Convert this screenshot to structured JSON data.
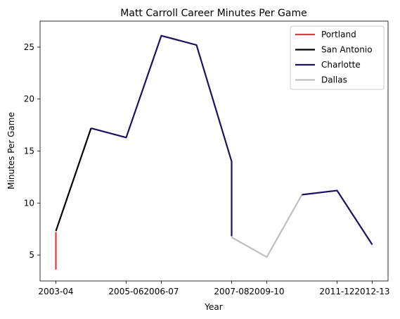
{
  "chart_data": {
    "type": "line",
    "title": "Matt Carroll  Career Minutes Per Game",
    "xlabel": "Year",
    "ylabel": "Minutes Per Game",
    "x_tick_labels": [
      "2003-04",
      "2005-06",
      "2006-07",
      "2007-08",
      "2009-10",
      "2011-12",
      "2012-13"
    ],
    "x_tick_positions": [
      0,
      1,
      2,
      3,
      4,
      5,
      6
    ],
    "xlim": [
      -0.45,
      6.45
    ],
    "ylim": [
      2.5,
      27.5
    ],
    "y_ticks": [
      5,
      10,
      15,
      20,
      25
    ],
    "grid": false,
    "legend_position": "top-right",
    "series": [
      {
        "name": "Portland",
        "color": "#dc3c44",
        "points": [
          {
            "x": 0,
            "y": 3.6
          },
          {
            "x": 0,
            "y": 7.2
          }
        ]
      },
      {
        "name": "San Antonio",
        "color": "#000000",
        "points": [
          {
            "x": 0,
            "y": 7.3
          },
          {
            "x": 1,
            "y": 17.2
          }
        ]
      },
      {
        "name": "Charlotte",
        "color": "#1d1160",
        "points": [
          {
            "x": 1,
            "y": 17.2
          },
          {
            "x": 2,
            "y": 16.3
          },
          {
            "x": 3,
            "y": 26.1
          },
          {
            "x": 4,
            "y": 25.2
          },
          {
            "x": 5,
            "y": 14.0
          },
          {
            "x": 5,
            "y": 6.8
          }
        ]
      },
      {
        "name": "Dallas",
        "color": "#bfbfbf",
        "points": [
          {
            "x": 5,
            "y": 6.7
          },
          {
            "x": 6,
            "y": 4.8
          },
          {
            "x": 7,
            "y": 10.8
          }
        ]
      },
      {
        "name": "Charlotte",
        "color": "#1d1160",
        "in_legend": false,
        "points": [
          {
            "x": 7,
            "y": 10.8
          },
          {
            "x": 8,
            "y": 11.2
          },
          {
            "x": 9,
            "y": 6.0
          }
        ]
      }
    ],
    "season_positions": [
      0,
      1,
      2,
      3,
      4,
      5,
      6,
      7,
      8,
      9
    ],
    "tick_season_positions": [
      0,
      2,
      3,
      5,
      6,
      8,
      9
    ]
  }
}
